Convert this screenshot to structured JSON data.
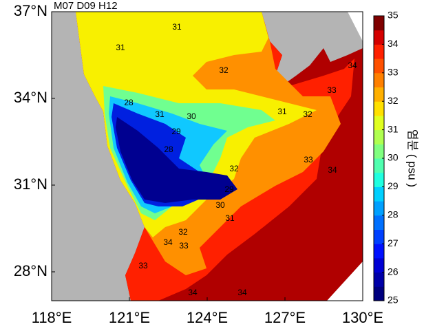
{
  "chart_data": {
    "type": "map",
    "title": "M07 D09 H12",
    "xticks": [
      {
        "value": 118,
        "label": "118°E"
      },
      {
        "value": 121,
        "label": "121°E"
      },
      {
        "value": 124,
        "label": "124°E"
      },
      {
        "value": 127,
        "label": "127°E"
      },
      {
        "value": 130,
        "label": "130°E"
      }
    ],
    "yticks": [
      {
        "value": 28,
        "label": "28°N"
      },
      {
        "value": 31,
        "label": "31°N"
      },
      {
        "value": 34,
        "label": "34°N"
      },
      {
        "value": 37,
        "label": "37°N"
      }
    ],
    "xlim": [
      118,
      130
    ],
    "ylim": [
      27,
      37
    ],
    "colorbar": {
      "label": "염분 ( psu )",
      "lim": [
        25,
        35
      ],
      "ticks": [
        25,
        26,
        27,
        28,
        29,
        30,
        31,
        32,
        33,
        34,
        35
      ],
      "colors": [
        "#00007f",
        "#0000a8",
        "#0000d4",
        "#0010ff",
        "#0040ff",
        "#0070ff",
        "#00a0ff",
        "#00d0ff",
        "#20ffe0",
        "#50ffb0",
        "#80ff80",
        "#b0ff50",
        "#e0ff20",
        "#ffe000",
        "#ffb000",
        "#ff8000",
        "#ff5000",
        "#ff2000",
        "#d40000",
        "#7f0000"
      ]
    },
    "contour_labels": [
      31,
      31,
      32,
      34,
      33,
      28,
      31,
      30,
      31,
      32,
      29,
      28,
      33,
      32,
      34,
      29,
      30,
      31,
      32,
      33,
      34,
      33,
      34,
      34
    ]
  }
}
